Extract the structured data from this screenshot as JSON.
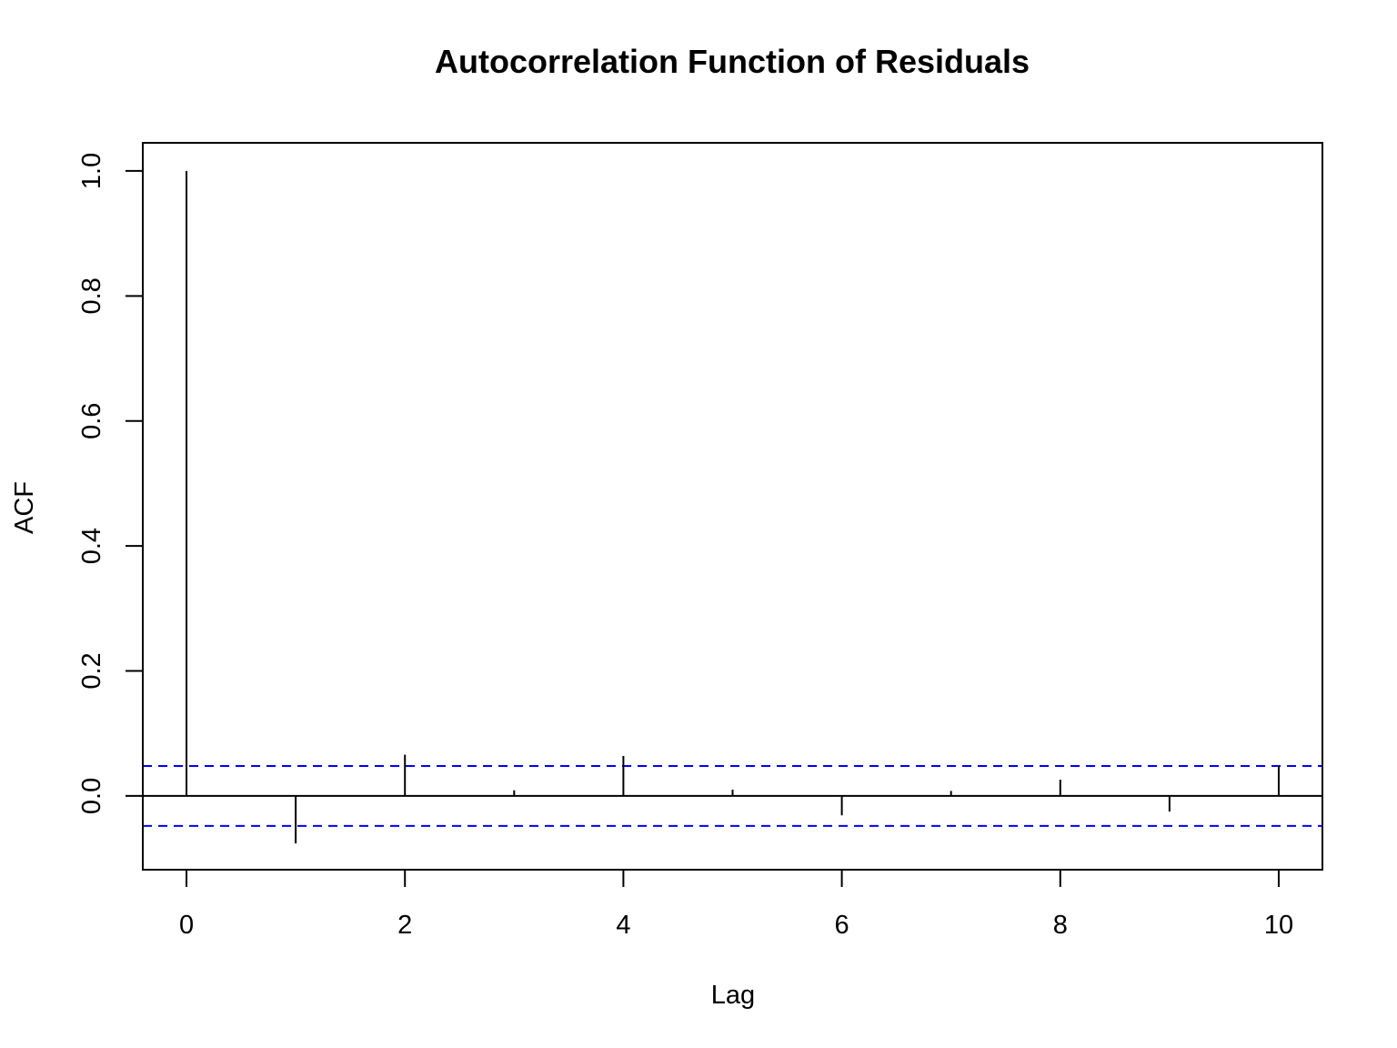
{
  "chart_data": {
    "type": "bar",
    "title": "Autocorrelation Function of Residuals",
    "xlabel": "Lag",
    "ylabel": "ACF",
    "x": [
      0,
      1,
      2,
      3,
      4,
      5,
      6,
      7,
      8,
      9,
      10
    ],
    "values": [
      1.0,
      -0.076,
      0.066,
      0.009,
      0.064,
      0.01,
      -0.031,
      0.008,
      0.026,
      -0.025,
      0.048
    ],
    "xlim": [
      -0.4,
      10.4
    ],
    "ylim": [
      -0.118,
      1.045
    ],
    "xticks": [
      "0",
      "2",
      "4",
      "6",
      "8",
      "10"
    ],
    "yticks": [
      "0.0",
      "0.2",
      "0.4",
      "0.6",
      "0.8",
      "1.0"
    ],
    "confidence_bounds": [
      0.048,
      -0.048
    ],
    "colors": {
      "bars": "#000000",
      "confidence": "#0000ff",
      "zero_line": "#000000"
    },
    "grid": false,
    "legend": "none"
  }
}
